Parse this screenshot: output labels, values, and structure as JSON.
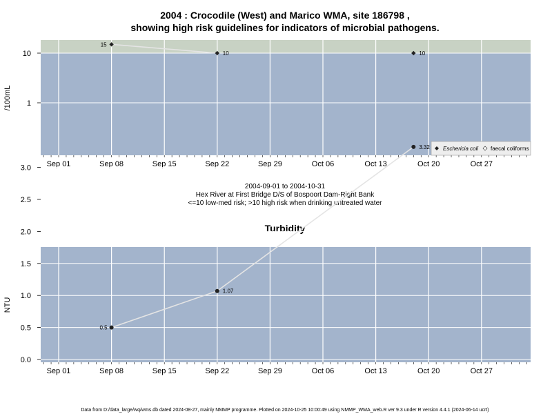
{
  "header": {
    "title_line1": "2004 : Crocodile (West) and Marico WMA, site 186798 ,",
    "title_line2": "showing high risk guidelines for indicators of microbial pathogens."
  },
  "middle": {
    "date_range": "2004-09-01 to 2004-10-31",
    "site_desc": "Hex River at First Bridge D/S of Bospoort Dam-Right Bank",
    "risk_note": "<=10 low-med risk; >10 high risk when drinking untreated water"
  },
  "footer": {
    "text": "Data from D:/data_large/wq/wms.db dated 2024-08-27, mainly NMMP programme. Plotted on 2024-10-25 10:00:49 using NMMP_WMA_web.R ver 9.3 under R version 4.4.1 (2024-06-14 ucrt)"
  },
  "colors": {
    "panel_bg": "#a3b4cc",
    "risk_band": "#c8d2c4",
    "grid": "#ffffff",
    "line": "#e4e4e4",
    "point": "#222222"
  },
  "chart_data": [
    {
      "type": "line",
      "ylabel": "/100mL",
      "yscale": "log",
      "x_ticks": [
        "Sep 01",
        "Sep 08",
        "Sep 15",
        "Sep 22",
        "Sep 29",
        "Oct 06",
        "Oct 13",
        "Oct 20",
        "Oct 27"
      ],
      "y_ticks": [
        "1",
        "10"
      ],
      "risk_threshold": 10,
      "legend_position": "bottom-right",
      "legend": [
        "Eschericia coli",
        "faecal coliforms"
      ],
      "series": [
        {
          "name": "Eschericia coli",
          "marker": "filled-diamond",
          "connected": true,
          "points": [
            {
              "x": "2004-09-08",
              "y": 15,
              "label": "15"
            },
            {
              "x": "2004-09-22",
              "y": 10,
              "label": "10"
            },
            {
              "x": "2004-10-18",
              "y": 10,
              "label": "10"
            }
          ]
        },
        {
          "name": "faecal coliforms",
          "marker": "open-diamond",
          "connected": false,
          "points": []
        }
      ]
    },
    {
      "type": "line",
      "title": "Turbidity",
      "ylabel": "NTU",
      "x_ticks": [
        "Sep 01",
        "Sep 08",
        "Sep 15",
        "Sep 22",
        "Sep 29",
        "Oct 06",
        "Oct 13",
        "Oct 20",
        "Oct 27"
      ],
      "y_ticks": [
        "0.0",
        "0.5",
        "1.0",
        "1.5",
        "2.0",
        "2.5",
        "3.0"
      ],
      "ylim": [
        -0.1,
        3.45
      ],
      "series": [
        {
          "name": "Turbidity",
          "marker": "filled-circle",
          "points": [
            {
              "x": "2004-09-08",
              "y": 0.5,
              "label": "0.5"
            },
            {
              "x": "2004-09-22",
              "y": 1.07,
              "label": "1.07"
            },
            {
              "x": "2004-10-18",
              "y": 3.32,
              "label": "3.32"
            }
          ]
        }
      ]
    }
  ]
}
